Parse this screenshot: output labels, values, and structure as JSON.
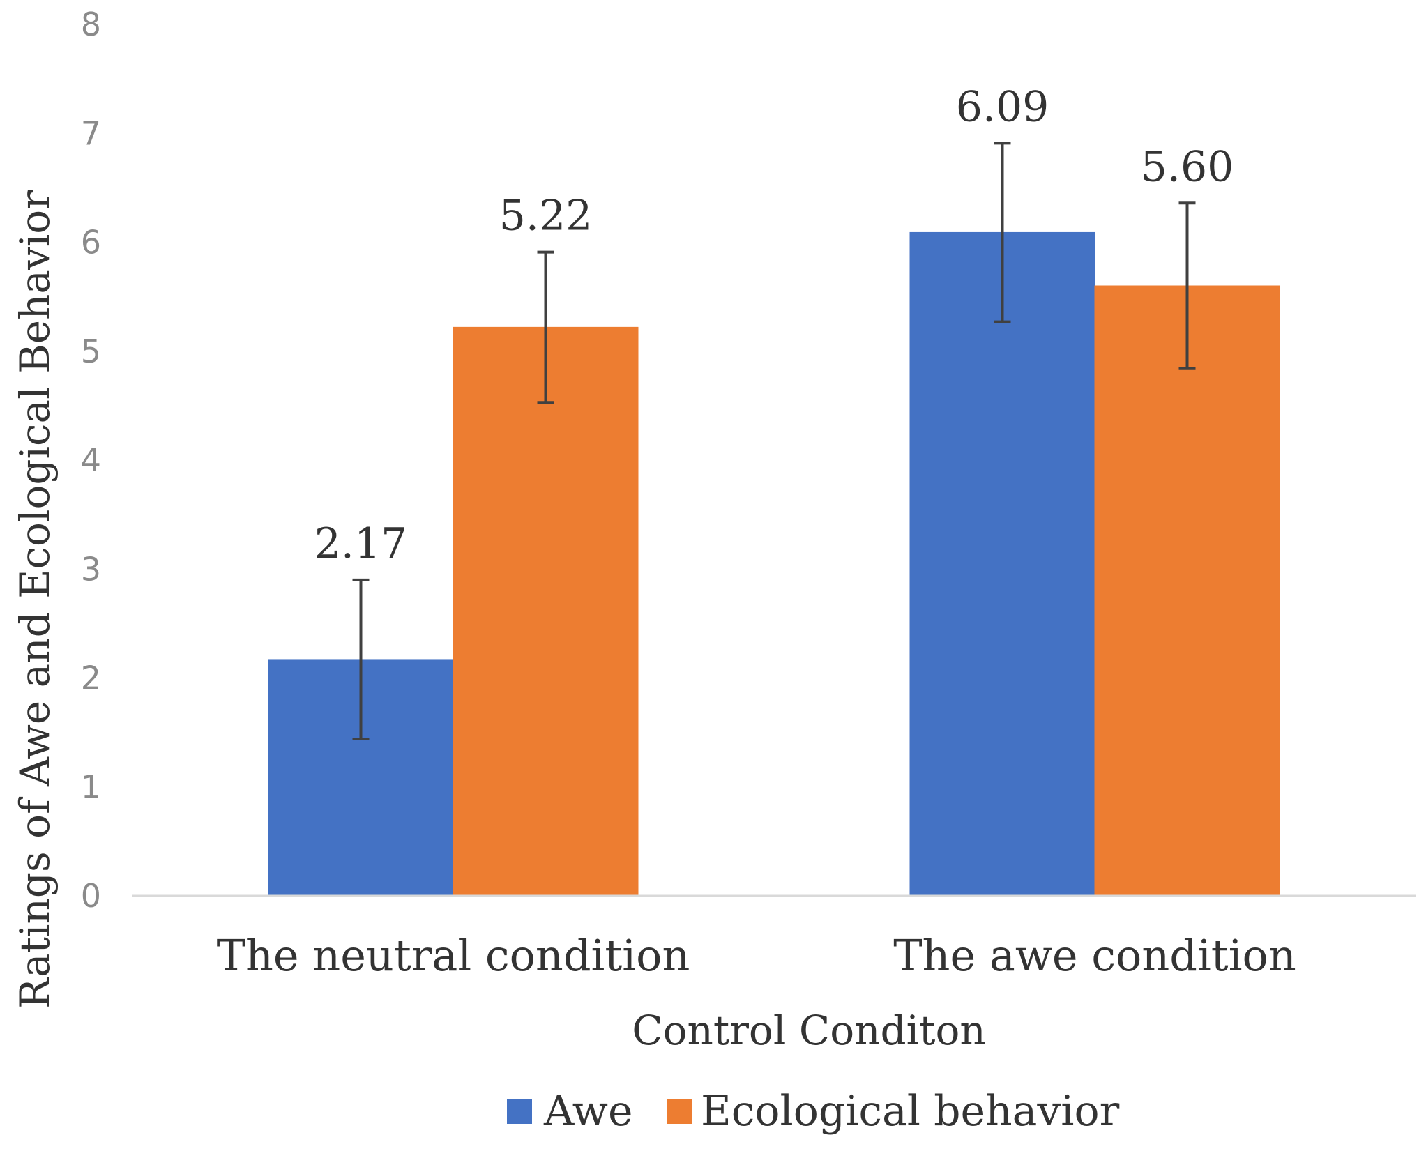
{
  "chart_data": {
    "type": "bar",
    "title": "",
    "categories": [
      "The neutral condition",
      "The awe condition"
    ],
    "series": [
      {
        "name": "Awe",
        "color": "#4472c4",
        "values": [
          2.17,
          6.09
        ],
        "labels": [
          "2.17",
          "6.09"
        ],
        "error": [
          0.73,
          0.82
        ]
      },
      {
        "name": "Ecological behavior",
        "color": "#ed7d31",
        "values": [
          5.22,
          5.6
        ],
        "labels": [
          "5.22",
          "5.60"
        ],
        "error": [
          0.69,
          0.76
        ]
      }
    ],
    "xlabel": "Control Conditon",
    "ylabel": "Ratings of Awe and Ecological Behavior",
    "ylim": [
      0,
      8
    ],
    "yticks": [
      "0",
      "1",
      "2",
      "3",
      "4",
      "5",
      "6",
      "7",
      "8"
    ],
    "grid": false,
    "legend_position": "bottom-center"
  }
}
